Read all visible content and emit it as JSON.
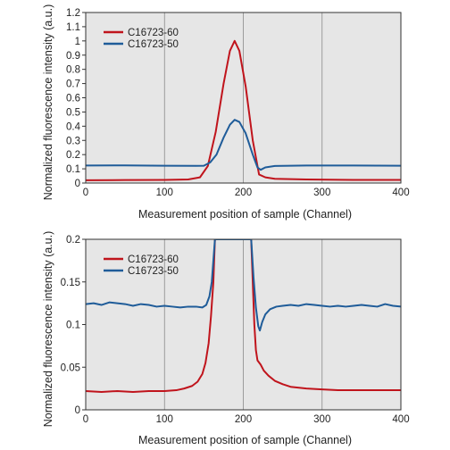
{
  "chart_data": [
    {
      "type": "line",
      "xlabel": "Measurement position of sample (Channel)",
      "ylabel": "Normalized fluorescence intensity (a.u.)",
      "xlim": [
        0,
        400
      ],
      "ylim": [
        0,
        1.2
      ],
      "xticks": [
        "0",
        "100",
        "200",
        "300",
        "400"
      ],
      "yticks": [
        "0",
        "0.1",
        "0.2",
        "0.3",
        "0.4",
        "0.5",
        "0.6",
        "0.7",
        "0.8",
        "0.9",
        "1",
        "1.1",
        "1.2"
      ],
      "grid": true,
      "legend_position": "top-left",
      "series": [
        {
          "name": "C16723-60",
          "color": "#c0141c",
          "points": [
            [
              0,
              0.02
            ],
            [
              50,
              0.021
            ],
            [
              100,
              0.022
            ],
            [
              130,
              0.025
            ],
            [
              145,
              0.04
            ],
            [
              155,
              0.12
            ],
            [
              165,
              0.36
            ],
            [
              175,
              0.7
            ],
            [
              183,
              0.93
            ],
            [
              189,
              1.0
            ],
            [
              195,
              0.93
            ],
            [
              203,
              0.68
            ],
            [
              212,
              0.3
            ],
            [
              220,
              0.06
            ],
            [
              228,
              0.04
            ],
            [
              240,
              0.03
            ],
            [
              280,
              0.025
            ],
            [
              340,
              0.022
            ],
            [
              400,
              0.022
            ]
          ]
        },
        {
          "name": "C16723-50",
          "color": "#1f5c99",
          "points": [
            [
              0,
              0.123
            ],
            [
              50,
              0.124
            ],
            [
              100,
              0.122
            ],
            [
              140,
              0.121
            ],
            [
              150,
              0.122
            ],
            [
              158,
              0.145
            ],
            [
              166,
              0.2
            ],
            [
              175,
              0.32
            ],
            [
              183,
              0.41
            ],
            [
              189,
              0.445
            ],
            [
              195,
              0.43
            ],
            [
              203,
              0.35
            ],
            [
              212,
              0.2
            ],
            [
              218,
              0.11
            ],
            [
              222,
              0.093
            ],
            [
              228,
              0.11
            ],
            [
              240,
              0.12
            ],
            [
              280,
              0.123
            ],
            [
              340,
              0.123
            ],
            [
              400,
              0.122
            ]
          ]
        }
      ]
    },
    {
      "type": "line",
      "xlabel": "Measurement position of sample (Channel)",
      "ylabel": "Normalized fluorescence intensity (a.u.)",
      "xlim": [
        0,
        400
      ],
      "ylim": [
        0,
        0.2
      ],
      "xticks": [
        "0",
        "100",
        "200",
        "300",
        "400"
      ],
      "yticks": [
        "0",
        "0.05",
        "0.1",
        "0.15",
        "0.2"
      ],
      "grid": true,
      "legend_position": "top-left",
      "series": [
        {
          "name": "C16723-60",
          "color": "#c0141c",
          "points": [
            [
              0,
              0.022
            ],
            [
              20,
              0.021
            ],
            [
              40,
              0.022
            ],
            [
              60,
              0.021
            ],
            [
              80,
              0.022
            ],
            [
              100,
              0.022
            ],
            [
              115,
              0.023
            ],
            [
              125,
              0.025
            ],
            [
              135,
              0.028
            ],
            [
              142,
              0.033
            ],
            [
              148,
              0.042
            ],
            [
              152,
              0.055
            ],
            [
              156,
              0.078
            ],
            [
              159,
              0.11
            ],
            [
              162,
              0.15
            ],
            [
              164,
              0.2
            ],
            [
              210,
              0.2
            ],
            [
              212,
              0.15
            ],
            [
              214,
              0.1
            ],
            [
              216,
              0.07
            ],
            [
              218,
              0.058
            ],
            [
              222,
              0.053
            ],
            [
              226,
              0.046
            ],
            [
              232,
              0.04
            ],
            [
              240,
              0.034
            ],
            [
              250,
              0.03
            ],
            [
              260,
              0.027
            ],
            [
              280,
              0.025
            ],
            [
              300,
              0.024
            ],
            [
              320,
              0.023
            ],
            [
              340,
              0.023
            ],
            [
              360,
              0.023
            ],
            [
              380,
              0.023
            ],
            [
              400,
              0.023
            ]
          ]
        },
        {
          "name": "C16723-50",
          "color": "#1f5c99",
          "points": [
            [
              0,
              0.124
            ],
            [
              10,
              0.125
            ],
            [
              20,
              0.123
            ],
            [
              30,
              0.126
            ],
            [
              40,
              0.125
            ],
            [
              50,
              0.124
            ],
            [
              60,
              0.122
            ],
            [
              70,
              0.124
            ],
            [
              80,
              0.123
            ],
            [
              90,
              0.121
            ],
            [
              100,
              0.122
            ],
            [
              110,
              0.121
            ],
            [
              120,
              0.12
            ],
            [
              130,
              0.121
            ],
            [
              140,
              0.121
            ],
            [
              148,
              0.12
            ],
            [
              153,
              0.123
            ],
            [
              157,
              0.133
            ],
            [
              160,
              0.15
            ],
            [
              162,
              0.175
            ],
            [
              164,
              0.2
            ],
            [
              210,
              0.2
            ],
            [
              213,
              0.155
            ],
            [
              216,
              0.12
            ],
            [
              219,
              0.098
            ],
            [
              221,
              0.093
            ],
            [
              224,
              0.103
            ],
            [
              228,
              0.112
            ],
            [
              234,
              0.118
            ],
            [
              242,
              0.121
            ],
            [
              250,
              0.122
            ],
            [
              260,
              0.123
            ],
            [
              270,
              0.122
            ],
            [
              280,
              0.124
            ],
            [
              290,
              0.123
            ],
            [
              300,
              0.122
            ],
            [
              310,
              0.121
            ],
            [
              320,
              0.122
            ],
            [
              330,
              0.121
            ],
            [
              340,
              0.122
            ],
            [
              350,
              0.123
            ],
            [
              360,
              0.122
            ],
            [
              370,
              0.121
            ],
            [
              380,
              0.124
            ],
            [
              390,
              0.122
            ],
            [
              400,
              0.121
            ]
          ]
        }
      ]
    }
  ]
}
